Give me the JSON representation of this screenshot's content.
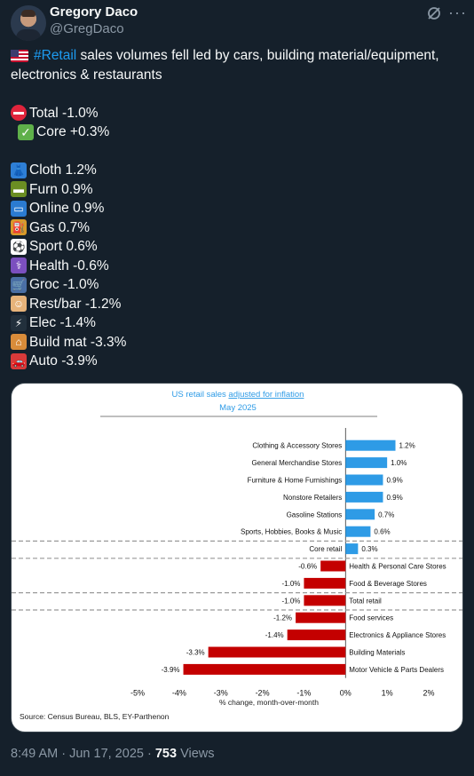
{
  "author": {
    "name": "Gregory Daco",
    "handle": "@GregDaco"
  },
  "header_icons": [
    "grok-icon",
    "more-icon"
  ],
  "tweet": {
    "intro_flag": "us-flag-icon",
    "hashtag": "#Retail",
    "intro_line1": " sales volumes fell led by cars, building material/equipment,",
    "intro_line2": "electronics & restaurants",
    "totals": [
      {
        "icon": "no-entry-icon",
        "text": "Total -1.0%"
      },
      {
        "icon": "check-mark-icon",
        "text": "Core +0.3%"
      }
    ],
    "categories": [
      {
        "icon": "dress-icon",
        "text": "Cloth 1.2%"
      },
      {
        "icon": "couch-icon",
        "text": "Furn 0.9%"
      },
      {
        "icon": "laptop-icon",
        "text": "Online 0.9%"
      },
      {
        "icon": "fuel-pump-icon",
        "text": "Gas 0.7%"
      },
      {
        "icon": "soccer-ball-icon",
        "text": "Sport 0.6%"
      },
      {
        "icon": "medical-icon",
        "text": "Health -0.6%"
      },
      {
        "icon": "cart-icon",
        "text": "Groc -1.0%"
      },
      {
        "icon": "cook-icon",
        "text": "Rest/bar -1.2%"
      },
      {
        "icon": "electric-plug-icon",
        "text": "Elec -1.4%"
      },
      {
        "icon": "house-icon",
        "text": "Build mat -3.3%"
      },
      {
        "icon": "car-icon",
        "text": "Auto -3.9%"
      }
    ]
  },
  "chart_data": {
    "type": "bar",
    "orientation": "horizontal",
    "title_prefix": "US retail sales ",
    "title_link": "adjusted for inflation",
    "subtitle": "May 2025",
    "xlabel": "% change, month-over-month",
    "xlim": [
      -5,
      2
    ],
    "xticks": [
      "-5%",
      "-4%",
      "-3%",
      "-2%",
      "-1%",
      "0%",
      "1%",
      "2%"
    ],
    "source": "Source: Census Bureau, BLS, EY-Parthenon",
    "positive_color": "#2e9be6",
    "negative_color": "#c40000",
    "categories": [
      "Clothing & Accessory Stores",
      "General Merchandise Stores",
      "Furniture & Home Furnishings",
      "Nonstore Retailers",
      "Gasoline Stations",
      "Sports, Hobbies, Books & Music",
      "Core retail",
      "Health & Personal Care Stores",
      "Food & Beverage Stores",
      "Total retail",
      "Food services",
      "Electronics & Appliance Stores",
      "Building Materials",
      "Motor Vehicle & Parts Dealers"
    ],
    "values": [
      1.2,
      1.0,
      0.9,
      0.9,
      0.7,
      0.6,
      0.3,
      -0.6,
      -1.0,
      -1.0,
      -1.2,
      -1.4,
      -3.3,
      -3.9
    ],
    "value_labels": [
      "1.2%",
      "1.0%",
      "0.9%",
      "0.9%",
      "0.7%",
      "0.6%",
      "0.3%",
      "-0.6%",
      "-1.0%",
      "-1.0%",
      "-1.2%",
      "-1.4%",
      "-3.3%",
      "-3.9%"
    ],
    "highlighted_rows": [
      "Core retail",
      "Total retail"
    ]
  },
  "meta": {
    "time": "8:49 AM",
    "date": "Jun 17, 2025",
    "views_count": "753",
    "views_label": "Views"
  }
}
